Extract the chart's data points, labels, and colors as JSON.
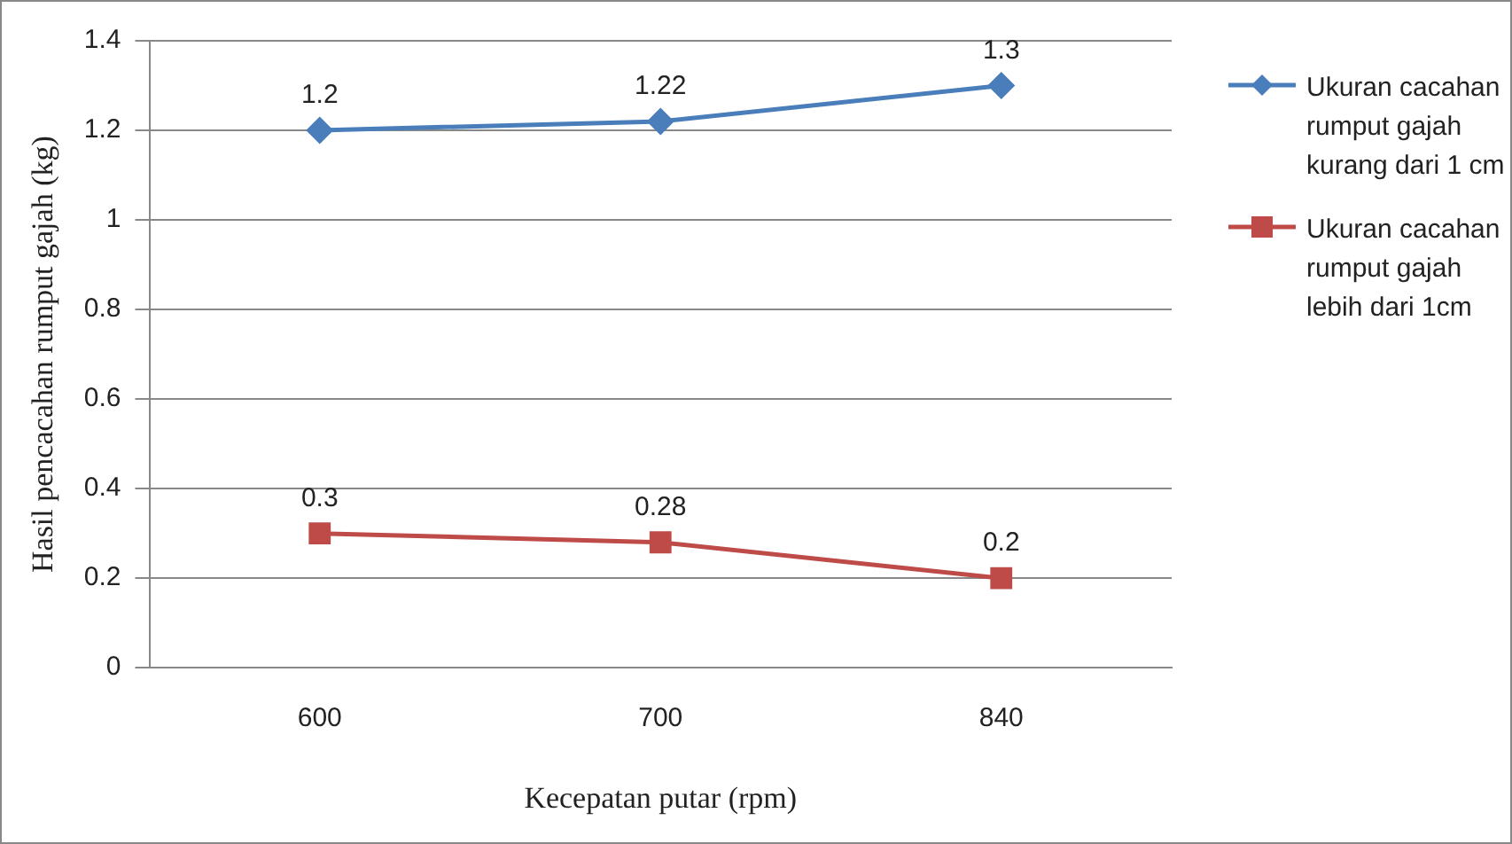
{
  "chart_data": {
    "type": "line",
    "xlabel": "Kecepatan putar (rpm)",
    "ylabel": "Hasil pencacahan rumput gajah (kg)",
    "categories": [
      "600",
      "700",
      "840"
    ],
    "series": [
      {
        "name": "Ukuran cacahan rumput gajah kurang dari 1 cm",
        "color": "#4a7ebb",
        "marker": "diamond",
        "values": [
          1.2,
          1.22,
          1.3
        ]
      },
      {
        "name": "Ukuran cacahan rumput gajah lebih dari 1cm",
        "color": "#be4b48",
        "marker": "square",
        "values": [
          0.3,
          0.28,
          0.2
        ]
      }
    ],
    "ylim": [
      0,
      1.4
    ],
    "yticks": [
      0,
      0.2,
      0.4,
      0.6,
      0.8,
      1,
      1.2,
      1.4
    ],
    "grid": "y",
    "legend": "right",
    "data_labels": true,
    "line_style": "solid"
  }
}
